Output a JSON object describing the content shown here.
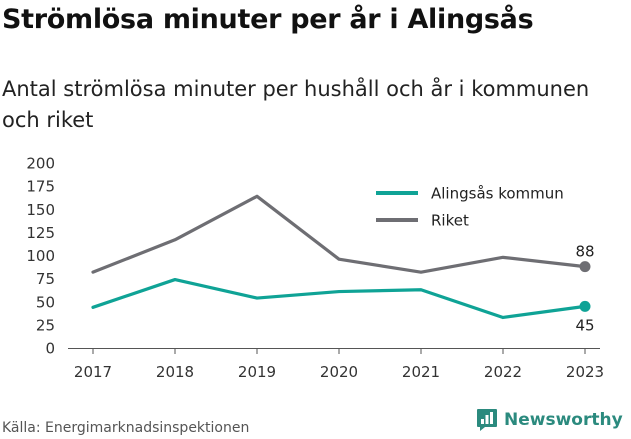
{
  "header": {
    "title": "Strömlösa minuter per år i Alingsås",
    "subtitle": "Antal strömlösa minuter per hushåll och år i kommunen och riket"
  },
  "footer": {
    "source": "Källa: Energimarknadsinspektionen",
    "brand": "Newsworthy",
    "brand_icon": "newsworthy-logo-icon"
  },
  "colors": {
    "alingsas": "#0fa396",
    "riket": "#6e6e73",
    "brand": "#2b8a7e",
    "axis": "#333333"
  },
  "chart_data": {
    "type": "line",
    "title": "Strömlösa minuter per år i Alingsås",
    "subtitle": "Antal strömlösa minuter per hushåll och år i kommunen och riket",
    "x": [
      2017,
      2018,
      2019,
      2020,
      2021,
      2022,
      2023
    ],
    "x_tick_labels": [
      "2017",
      "2018",
      "2019",
      "2020",
      "2021",
      "2022",
      "2023"
    ],
    "ylim": [
      0,
      200
    ],
    "y_ticks": [
      0,
      25,
      50,
      75,
      100,
      125,
      150,
      175,
      200
    ],
    "y_tick_labels": [
      "0",
      "25",
      "50",
      "75",
      "100",
      "125",
      "150",
      "175",
      "200"
    ],
    "grid": false,
    "legend_position": "top-right",
    "series": [
      {
        "name": "Alingsås kommun",
        "color": "#0fa396",
        "values": [
          44,
          74,
          54,
          61,
          63,
          33,
          45
        ],
        "end_label": "45",
        "end_label_position": "below"
      },
      {
        "name": "Riket",
        "color": "#6e6e73",
        "values": [
          82,
          117,
          164,
          96,
          82,
          98,
          88
        ],
        "end_label": "88",
        "end_label_position": "above"
      }
    ]
  }
}
